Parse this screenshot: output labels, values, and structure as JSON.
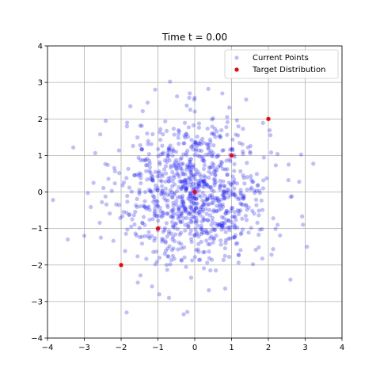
{
  "chart_data": {
    "type": "scatter",
    "title": "Time t = 0.00",
    "xlabel": "",
    "ylabel": "",
    "xlim": [
      -4,
      4
    ],
    "ylim": [
      -4,
      4
    ],
    "xticks": [
      -4,
      -3,
      -2,
      -1,
      0,
      1,
      2,
      3,
      4
    ],
    "yticks": [
      -4,
      -3,
      -2,
      -1,
      0,
      1,
      2,
      3,
      4
    ],
    "xtick_labels": [
      "−4",
      "−3",
      "−2",
      "−1",
      "0",
      "1",
      "2",
      "3",
      "4"
    ],
    "ytick_labels": [
      "−4",
      "−3",
      "−2",
      "−1",
      "0",
      "1",
      "2",
      "3",
      "4"
    ],
    "grid": true,
    "legend_position": "top-right",
    "series": [
      {
        "name": "Current Points",
        "color": "#0000ff",
        "opacity": 0.25,
        "generated_count": 1000,
        "distribution": "standard normal (mean 0, std 1)",
        "points": [
          [
            -3.85,
            -0.22
          ],
          [
            -3.3,
            1.22
          ],
          [
            -3.45,
            -1.3
          ],
          [
            -3.0,
            -1.2
          ],
          [
            3.05,
            -1.5
          ],
          [
            -1.85,
            -3.3
          ],
          [
            -0.3,
            -3.35
          ],
          [
            -0.7,
            -2.9
          ],
          [
            2.55,
            0.75
          ],
          [
            2.6,
            -2.4
          ],
          [
            -2.75,
            0.25
          ],
          [
            -2.55,
            -1.25
          ],
          [
            2.25,
            -0.9
          ],
          [
            -1.75,
            2.35
          ],
          [
            0.75,
            2.7
          ]
        ]
      },
      {
        "name": "Target Distribution",
        "color": "#ff0000",
        "points": [
          [
            -2,
            -2
          ],
          [
            -1,
            -1
          ],
          [
            0,
            0
          ],
          [
            1,
            1
          ],
          [
            2,
            2
          ]
        ]
      }
    ]
  }
}
